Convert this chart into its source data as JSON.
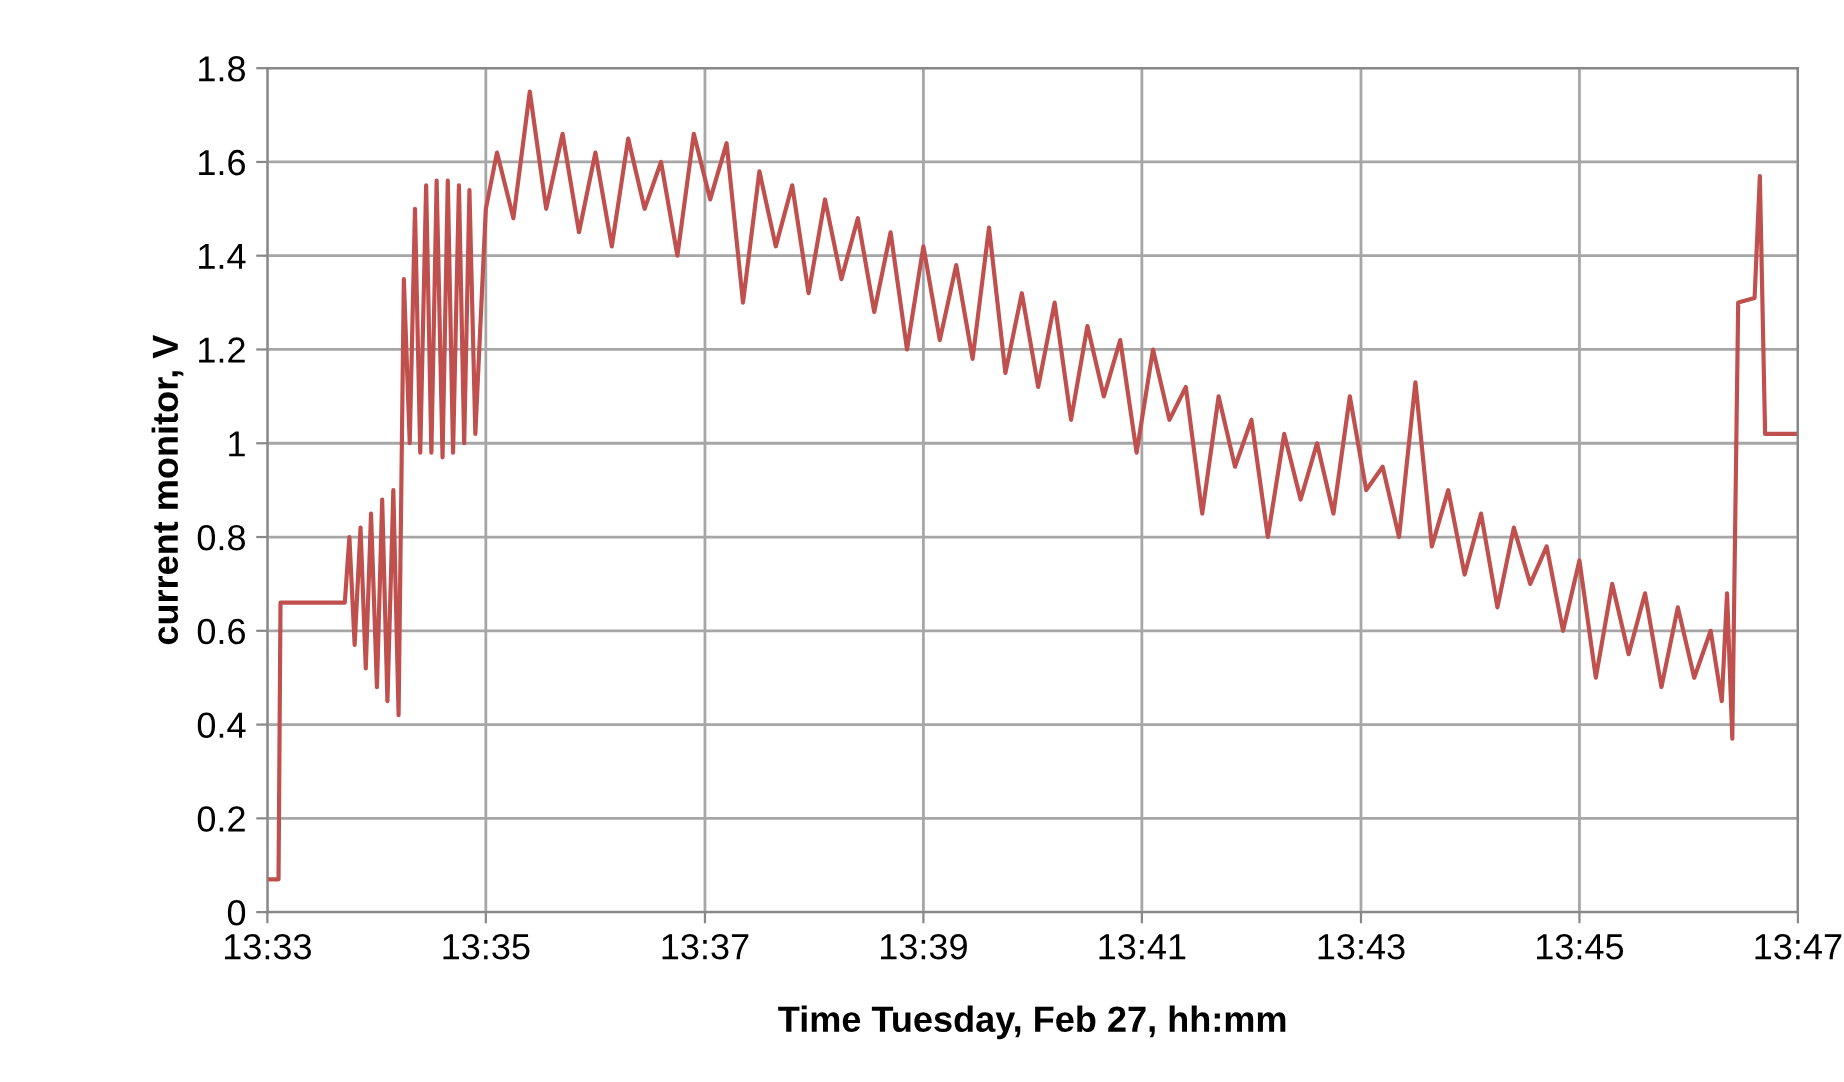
{
  "chart_data": {
    "type": "line",
    "ylabel": "current monitor, V",
    "xlabel": "Time Tuesday, Feb 27, hh:mm",
    "x": [
      13.55,
      13.5517,
      13.552,
      13.5618,
      13.5625,
      13.5633,
      13.5642,
      13.565,
      13.5658,
      13.5667,
      13.5675,
      13.5683,
      13.5692,
      13.57,
      13.5708,
      13.5717,
      13.5725,
      13.5733,
      13.5742,
      13.575,
      13.5758,
      13.5767,
      13.5775,
      13.5783,
      13.5792,
      13.58,
      13.5808,
      13.5817,
      13.5833,
      13.585,
      13.5875,
      13.59,
      13.5925,
      13.595,
      13.5975,
      13.6,
      13.6025,
      13.605,
      13.6075,
      13.61,
      13.6125,
      13.615,
      13.6175,
      13.62,
      13.6225,
      13.625,
      13.6275,
      13.63,
      13.6325,
      13.635,
      13.6375,
      13.64,
      13.6425,
      13.645,
      13.6475,
      13.65,
      13.6525,
      13.655,
      13.6575,
      13.66,
      13.6625,
      13.665,
      13.6675,
      13.67,
      13.6725,
      13.675,
      13.6775,
      13.68,
      13.6825,
      13.685,
      13.6875,
      13.69,
      13.6925,
      13.695,
      13.6975,
      13.7,
      13.7025,
      13.705,
      13.7075,
      13.71,
      13.7125,
      13.715,
      13.7175,
      13.72,
      13.7225,
      13.725,
      13.7275,
      13.73,
      13.7325,
      13.735,
      13.7375,
      13.74,
      13.7425,
      13.745,
      13.7475,
      13.75,
      13.7525,
      13.755,
      13.7575,
      13.76,
      13.7625,
      13.765,
      13.7675,
      13.77,
      13.7717,
      13.7725,
      13.7733,
      13.7742,
      13.7767,
      13.7775,
      13.7783,
      13.7833
    ],
    "series": [
      {
        "color": "#c0504d",
        "values": [
          0.07,
          0.07,
          0.66,
          0.66,
          0.8,
          0.57,
          0.82,
          0.52,
          0.85,
          0.48,
          0.88,
          0.45,
          0.9,
          0.42,
          1.35,
          1.0,
          1.5,
          0.98,
          1.55,
          0.98,
          1.56,
          0.97,
          1.56,
          0.98,
          1.55,
          1.0,
          1.54,
          1.02,
          1.5,
          1.62,
          1.48,
          1.75,
          1.5,
          1.66,
          1.45,
          1.62,
          1.42,
          1.65,
          1.5,
          1.6,
          1.4,
          1.66,
          1.52,
          1.64,
          1.3,
          1.58,
          1.42,
          1.55,
          1.32,
          1.52,
          1.35,
          1.48,
          1.28,
          1.45,
          1.2,
          1.42,
          1.22,
          1.38,
          1.18,
          1.46,
          1.15,
          1.32,
          1.12,
          1.3,
          1.05,
          1.25,
          1.1,
          1.22,
          0.98,
          1.2,
          1.05,
          1.12,
          0.85,
          1.1,
          0.95,
          1.05,
          0.8,
          1.02,
          0.88,
          1.0,
          0.85,
          1.1,
          0.9,
          0.95,
          0.8,
          1.13,
          0.78,
          0.9,
          0.72,
          0.85,
          0.65,
          0.82,
          0.7,
          0.78,
          0.6,
          0.75,
          0.5,
          0.7,
          0.55,
          0.68,
          0.48,
          0.65,
          0.5,
          0.6,
          0.45,
          0.68,
          0.37,
          1.3,
          1.31,
          1.57,
          1.02,
          1.02
        ]
      }
    ],
    "xlim": [
      13.55,
      13.7833
    ],
    "xticks": [
      {
        "value": 13.55,
        "label": "13:33"
      },
      {
        "value": 13.5833,
        "label": "13:35"
      },
      {
        "value": 13.6167,
        "label": "13:37"
      },
      {
        "value": 13.65,
        "label": "13:39"
      },
      {
        "value": 13.6833,
        "label": "13:41"
      },
      {
        "value": 13.7167,
        "label": "13:43"
      },
      {
        "value": 13.75,
        "label": "13:45"
      },
      {
        "value": 13.7833,
        "label": "13:47"
      }
    ],
    "ylim": [
      0,
      1.8
    ],
    "yticks": [
      0,
      0.2,
      0.4,
      0.6,
      0.8,
      1,
      1.2,
      1.4,
      1.6,
      1.8
    ],
    "grid": true,
    "marker": "none",
    "line_style": "solid"
  }
}
